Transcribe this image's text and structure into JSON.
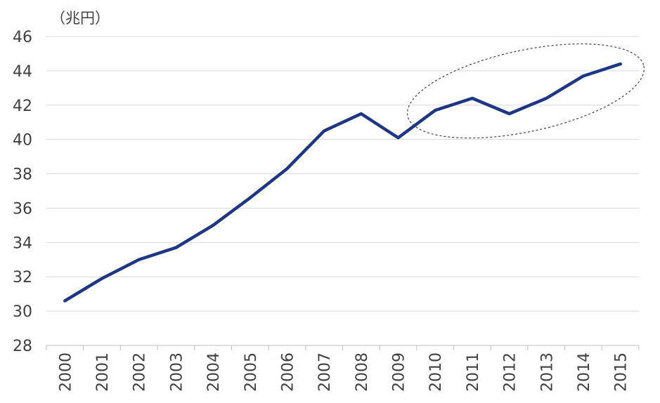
{
  "chart_data": {
    "type": "line",
    "title": "",
    "unit_label": "（兆円）",
    "xlabel": "",
    "ylabel": "",
    "ylim": [
      28,
      46
    ],
    "yticks": [
      28,
      30,
      32,
      34,
      36,
      38,
      40,
      42,
      44,
      46
    ],
    "grid": true,
    "categories": [
      "2000",
      "2001",
      "2002",
      "2003",
      "2004",
      "2005",
      "2006",
      "2007",
      "2008",
      "2009",
      "2010",
      "2011",
      "2012",
      "2013",
      "2014",
      "2015"
    ],
    "series": [
      {
        "name": "",
        "color": "#1F3684",
        "values": [
          30.6,
          31.9,
          33.0,
          33.7,
          35.0,
          36.6,
          38.3,
          40.5,
          41.5,
          40.1,
          41.7,
          42.4,
          41.5,
          42.4,
          43.7,
          44.4
        ]
      }
    ],
    "annotation": {
      "type": "dashed-ellipse",
      "from_category": "2010",
      "to_category": "2015",
      "color": "#404040"
    }
  }
}
